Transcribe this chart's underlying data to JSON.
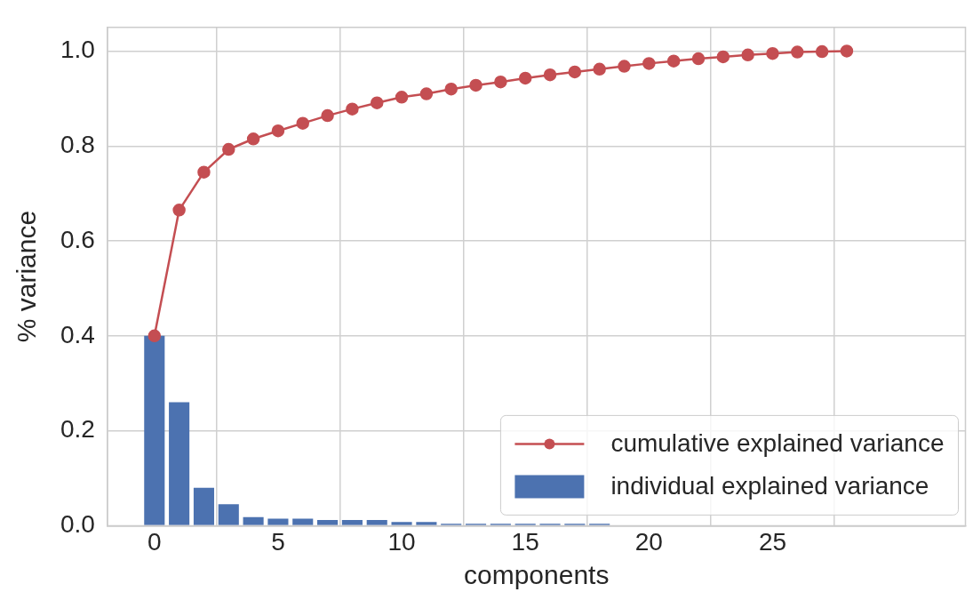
{
  "chart_data": {
    "type": "bar",
    "xlabel": "components",
    "ylabel": "% variance",
    "xlim": [
      -1.9,
      32.8
    ],
    "xticks": [
      0,
      5,
      10,
      15,
      20,
      25
    ],
    "ylim": [
      0,
      1.05
    ],
    "yticks": [
      {
        "value": 0,
        "label": "0.0"
      },
      {
        "value": 0.2,
        "label": "0.2"
      },
      {
        "value": 0.4,
        "label": "0.4"
      },
      {
        "value": 0.6,
        "label": "0.6"
      },
      {
        "value": 0.8,
        "label": "0.8"
      },
      {
        "value": 1,
        "label": "1.0"
      }
    ],
    "grid": true,
    "legend": "bottom right",
    "marker": "circle",
    "series": [
      {
        "name": "cumulative explained variance",
        "type": "line",
        "color": "#c44e52",
        "x": [
          0,
          1,
          2,
          3,
          4,
          5,
          6,
          7,
          8,
          9,
          10,
          11,
          12,
          13,
          14,
          15,
          16,
          17,
          18,
          19,
          20,
          21,
          22,
          23,
          24,
          25,
          26,
          27,
          28
        ],
        "values": [
          0.4,
          0.665,
          0.745,
          0.793,
          0.815,
          0.832,
          0.848,
          0.864,
          0.878,
          0.891,
          0.903,
          0.91,
          0.92,
          0.928,
          0.935,
          0.943,
          0.95,
          0.956,
          0.962,
          0.968,
          0.974,
          0.979,
          0.984,
          0.988,
          0.992,
          0.995,
          0.998,
          0.999,
          1.0
        ]
      },
      {
        "name": "individual explained variance",
        "color": "#4c72b0",
        "x": [
          0,
          1,
          2,
          3,
          4,
          5,
          6,
          7,
          8,
          9,
          10,
          11,
          12,
          13,
          14,
          15,
          16,
          17,
          18
        ],
        "values": [
          0.4,
          0.26,
          0.08,
          0.045,
          0.018,
          0.015,
          0.015,
          0.012,
          0.012,
          0.012,
          0.008,
          0.008,
          0.004,
          0.004,
          0.004,
          0.004,
          0.004,
          0.004,
          0.004
        ]
      }
    ]
  }
}
